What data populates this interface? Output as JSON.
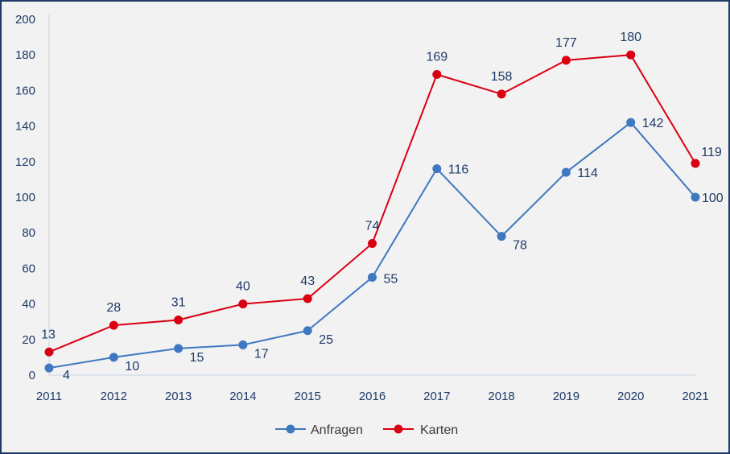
{
  "chart_data": {
    "type": "line",
    "title": "",
    "xlabel": "",
    "ylabel": "",
    "categories": [
      "2011",
      "2012",
      "2013",
      "2014",
      "2015",
      "2016",
      "2017",
      "2018",
      "2019",
      "2020",
      "2021"
    ],
    "ylim": [
      0,
      200
    ],
    "yticks": [
      "0",
      "20",
      "40",
      "60",
      "80",
      "100",
      "120",
      "140",
      "160",
      "180",
      "200"
    ],
    "grid": false,
    "legend_position": "bottom",
    "series": [
      {
        "name": "Anfragen",
        "color": "#3f78c0",
        "values": [
          4,
          10,
          15,
          17,
          25,
          55,
          116,
          78,
          114,
          142,
          100
        ]
      },
      {
        "name": "Karten",
        "color": "#d90013",
        "values": [
          13,
          28,
          31,
          40,
          43,
          74,
          169,
          158,
          177,
          180,
          119
        ]
      }
    ]
  }
}
